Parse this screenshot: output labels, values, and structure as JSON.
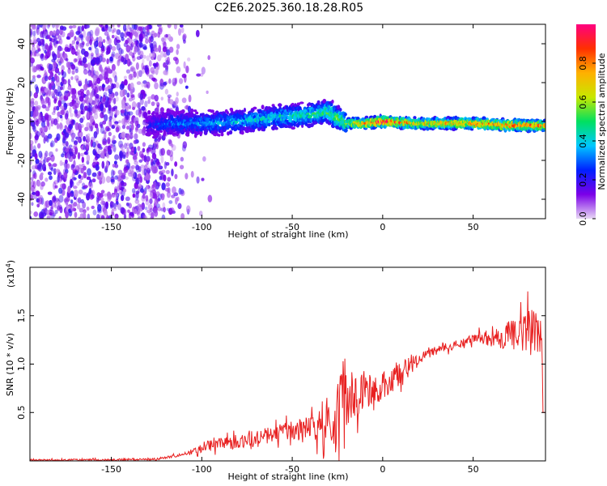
{
  "title": "C2E6.2025.360.18.28.R05",
  "chart_data": [
    {
      "type": "heatmap",
      "name": "spectrogram",
      "xlabel": "Height of straight line (km)",
      "ylabel": "Frequency (Hz)",
      "xlim": [
        -195,
        90
      ],
      "ylim": [
        -50,
        50
      ],
      "x_ticks": [
        -150,
        -100,
        -50,
        0,
        50
      ],
      "x_tick_labels": [
        "-150",
        "-100",
        "-50",
        "0",
        "50"
      ],
      "y_ticks": [
        -40,
        -20,
        0,
        20,
        40
      ],
      "y_tick_labels": [
        "-40",
        "-20",
        "0",
        "20",
        "40"
      ],
      "colorbar": {
        "label": "Normalized spectral amplitude",
        "range": [
          0.0,
          1.0
        ],
        "ticks": [
          0.0,
          0.2,
          0.4,
          0.6,
          0.8
        ],
        "tick_labels": [
          "0.0",
          "0.2",
          "0.4",
          "0.6",
          "0.8"
        ],
        "colors": [
          "#e8d8f4",
          "#7b00e8",
          "#0020ff",
          "#00c8ff",
          "#00e060",
          "#c8e800",
          "#ffb000",
          "#ff3000",
          "#ff0080"
        ]
      },
      "noise_region": {
        "x_range": [
          -195,
          -110
        ],
        "freq_range": [
          -50,
          50
        ],
        "amplitude": 0.12
      },
      "ridge": [
        {
          "x": -130,
          "freq": -2,
          "amplitude": 0.2
        },
        {
          "x": -120,
          "freq": -1,
          "amplitude": 0.3
        },
        {
          "x": -100,
          "freq": -1,
          "amplitude": 0.35
        },
        {
          "x": -80,
          "freq": 0,
          "amplitude": 0.38
        },
        {
          "x": -60,
          "freq": 2,
          "amplitude": 0.42
        },
        {
          "x": -45,
          "freq": 3,
          "amplitude": 0.45
        },
        {
          "x": -30,
          "freq": 5,
          "amplitude": 0.5
        },
        {
          "x": -20,
          "freq": -1,
          "amplitude": 0.6
        },
        {
          "x": -10,
          "freq": -1,
          "amplitude": 0.75
        },
        {
          "x": 0,
          "freq": 0,
          "amplitude": 0.95
        },
        {
          "x": 20,
          "freq": -1,
          "amplitude": 0.7
        },
        {
          "x": 50,
          "freq": -1,
          "amplitude": 0.8
        },
        {
          "x": 70,
          "freq": -2,
          "amplitude": 0.85
        },
        {
          "x": 90,
          "freq": -2,
          "amplitude": 0.8
        }
      ]
    },
    {
      "type": "line",
      "name": "snr",
      "xlabel": "Height of straight line (km)",
      "ylabel": "SNR (10 * v/v)",
      "y_scale_label": "(x10",
      "y_scale_exponent": "4",
      "y_scale_close": ")",
      "xlim": [
        -195,
        90
      ],
      "ylim": [
        0,
        2.0
      ],
      "x_ticks": [
        -150,
        -100,
        -50,
        0,
        50
      ],
      "x_tick_labels": [
        "-150",
        "-100",
        "-50",
        "0",
        "50"
      ],
      "y_ticks": [
        0.5,
        1.0,
        1.5
      ],
      "y_tick_labels": [
        "0.5",
        "1.0",
        "1.5"
      ],
      "color": "#e82020",
      "trend": {
        "x": [
          -195,
          -150,
          -125,
          -115,
          -105,
          -100,
          -80,
          -60,
          -45,
          -35,
          -25,
          -20,
          -10,
          0,
          10,
          20,
          30,
          40,
          50,
          60,
          70,
          80,
          88,
          90
        ],
        "y": [
          0.01,
          0.01,
          0.02,
          0.05,
          0.1,
          0.15,
          0.2,
          0.28,
          0.33,
          0.4,
          0.55,
          0.65,
          0.72,
          0.78,
          0.92,
          1.05,
          1.15,
          1.2,
          1.25,
          1.28,
          1.3,
          1.35,
          1.35,
          0.5
        ]
      },
      "noise_amplitude": [
        {
          "x": -195,
          "a": 0.01
        },
        {
          "x": -110,
          "a": 0.02
        },
        {
          "x": -100,
          "a": 0.08
        },
        {
          "x": -40,
          "a": 0.15
        },
        {
          "x": -25,
          "a": 0.55
        },
        {
          "x": -10,
          "a": 0.25
        },
        {
          "x": 10,
          "a": 0.2
        },
        {
          "x": 25,
          "a": 0.06
        },
        {
          "x": 50,
          "a": 0.07
        },
        {
          "x": 75,
          "a": 0.25
        },
        {
          "x": 90,
          "a": 0.45
        }
      ]
    }
  ]
}
